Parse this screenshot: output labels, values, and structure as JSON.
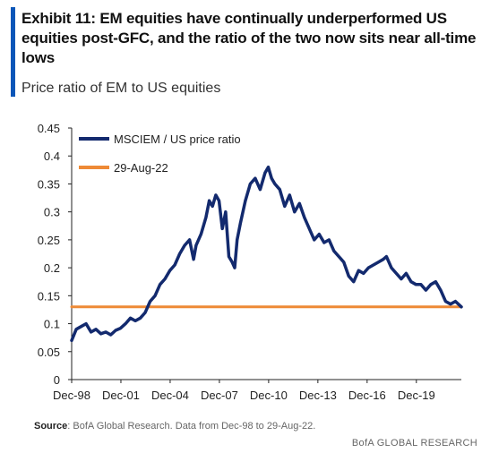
{
  "exhibit": {
    "title": "Exhibit 11: EM equities have continually underperformed US equities post-GFC, and the ratio of the two now sits near all-time lows",
    "subtitle": "Price ratio of EM to US equities",
    "accent_color": "#0a56b8"
  },
  "source": {
    "label": "Source",
    "text": ": BofA Global Research. Data from Dec-98 to 29-Aug-22."
  },
  "footer": {
    "brand": "BofA GLOBAL RESEARCH"
  },
  "chart_data": {
    "type": "line",
    "title": "",
    "xlabel": "",
    "ylabel": "",
    "ylim": [
      0,
      0.45
    ],
    "yticks": [
      0,
      0.05,
      0.1,
      0.15,
      0.2,
      0.25,
      0.3,
      0.35,
      0.4,
      0.45
    ],
    "ytick_labels": [
      "0",
      "0.05",
      "0.1",
      "0.15",
      "0.2",
      "0.25",
      "0.3",
      "0.35",
      "0.4",
      "0.45"
    ],
    "xlim": [
      1998.92,
      2022.66
    ],
    "xticks": [
      1998.92,
      2001.92,
      2004.92,
      2007.92,
      2010.92,
      2013.92,
      2016.92,
      2019.92
    ],
    "xtick_labels": [
      "Dec-98",
      "Dec-01",
      "Dec-04",
      "Dec-07",
      "Dec-10",
      "Dec-13",
      "Dec-16",
      "Dec-19"
    ],
    "grid": false,
    "legend_position": "top-left",
    "series": [
      {
        "name": "MSCIEM / US price ratio",
        "color": "#132a6e",
        "x": [
          1998.92,
          1999.2,
          1999.5,
          1999.8,
          2000.1,
          2000.4,
          2000.7,
          2001.0,
          2001.3,
          2001.6,
          2001.9,
          2002.2,
          2002.5,
          2002.8,
          2003.1,
          2003.4,
          2003.7,
          2004.0,
          2004.3,
          2004.6,
          2004.9,
          2005.2,
          2005.5,
          2005.8,
          2006.1,
          2006.35,
          2006.5,
          2006.8,
          2007.1,
          2007.3,
          2007.5,
          2007.7,
          2007.9,
          2008.1,
          2008.3,
          2008.5,
          2008.7,
          2008.85,
          2009.0,
          2009.2,
          2009.5,
          2009.8,
          2010.1,
          2010.4,
          2010.7,
          2010.9,
          2011.1,
          2011.3,
          2011.6,
          2011.9,
          2012.2,
          2012.5,
          2012.8,
          2013.1,
          2013.4,
          2013.7,
          2014.0,
          2014.3,
          2014.6,
          2014.9,
          2015.2,
          2015.5,
          2015.8,
          2016.1,
          2016.4,
          2016.7,
          2017.0,
          2017.3,
          2017.6,
          2017.9,
          2018.1,
          2018.4,
          2018.7,
          2019.0,
          2019.3,
          2019.6,
          2019.9,
          2020.2,
          2020.5,
          2020.8,
          2021.1,
          2021.4,
          2021.7,
          2022.0,
          2022.3,
          2022.66
        ],
        "values": [
          0.07,
          0.09,
          0.095,
          0.1,
          0.085,
          0.09,
          0.082,
          0.085,
          0.08,
          0.088,
          0.092,
          0.1,
          0.11,
          0.105,
          0.11,
          0.12,
          0.14,
          0.15,
          0.17,
          0.18,
          0.195,
          0.205,
          0.225,
          0.24,
          0.25,
          0.215,
          0.24,
          0.26,
          0.29,
          0.32,
          0.31,
          0.33,
          0.32,
          0.27,
          0.3,
          0.22,
          0.21,
          0.2,
          0.25,
          0.28,
          0.32,
          0.35,
          0.36,
          0.34,
          0.37,
          0.38,
          0.36,
          0.35,
          0.34,
          0.31,
          0.33,
          0.3,
          0.315,
          0.29,
          0.27,
          0.25,
          0.26,
          0.245,
          0.25,
          0.23,
          0.22,
          0.21,
          0.185,
          0.175,
          0.195,
          0.19,
          0.2,
          0.205,
          0.21,
          0.215,
          0.22,
          0.2,
          0.19,
          0.18,
          0.19,
          0.175,
          0.17,
          0.17,
          0.16,
          0.17,
          0.175,
          0.16,
          0.14,
          0.135,
          0.14,
          0.13
        ]
      },
      {
        "name": "29-Aug-22",
        "color": "#ee8a36",
        "x": [
          1998.92,
          2022.66
        ],
        "values": [
          0.13,
          0.13
        ]
      }
    ]
  }
}
